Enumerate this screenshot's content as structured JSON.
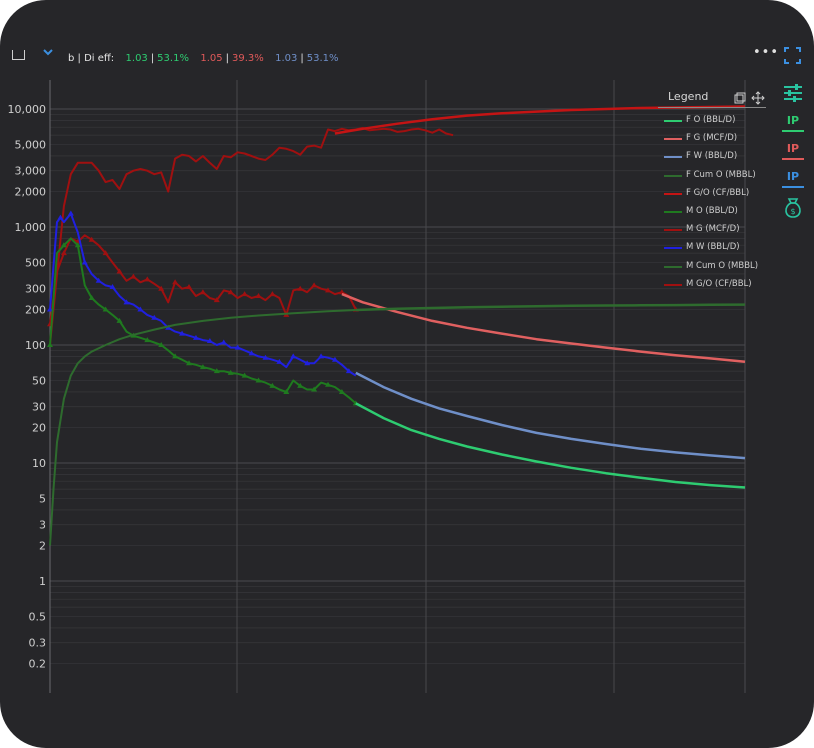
{
  "header": {
    "label": "b | Di eff:",
    "eff": [
      {
        "b": "1.03",
        "d": "53.1%",
        "color": "#2ecc71"
      },
      {
        "b": "1.05",
        "d": "39.3%",
        "color": "#e05a5a"
      },
      {
        "b": "1.03",
        "d": "53.1%",
        "color": "#6f8fc8"
      }
    ]
  },
  "side_buttons": [
    {
      "icon": "sliders-icon",
      "color": "#29c3a0"
    },
    {
      "label": "IP",
      "color": "#2ecc71"
    },
    {
      "label": "IP",
      "color": "#e05a5a"
    },
    {
      "label": "IP",
      "color": "#3b8fe0"
    },
    {
      "icon": "money-bag-icon",
      "color": "#29c3a0"
    }
  ],
  "legend": {
    "title": "Legend",
    "items": [
      {
        "label": "F O (BBL/D)",
        "color": "#2ecc71"
      },
      {
        "label": "F G (MCF/D)",
        "color": "#e06060"
      },
      {
        "label": "F W (BBL/D)",
        "color": "#6f8fc8"
      },
      {
        "label": "F Cum O (MBBL)",
        "color": "#2e6b2e"
      },
      {
        "label": "F G/O (CF/BBL)",
        "color": "#c41414"
      },
      {
        "label": "M O (BBL/D)",
        "color": "#1f7a1f"
      },
      {
        "label": "M G (MCF/D)",
        "color": "#a01010"
      },
      {
        "label": "M W (BBL/D)",
        "color": "#2020e0"
      },
      {
        "label": "M Cum O (MBBL)",
        "color": "#2e6b2e"
      },
      {
        "label": "M G/O (CF/BBL)",
        "color": "#a01010"
      }
    ]
  },
  "chart_data": {
    "type": "line",
    "yscale": "log",
    "ylim": [
      0.15,
      20000
    ],
    "xlim": [
      0,
      100
    ],
    "grid": true,
    "yticks": [
      "10,000",
      "5,000",
      "3,000",
      "2,000",
      "1,000",
      "500",
      "300",
      "200",
      "100",
      "50",
      "30",
      "20",
      "10",
      "5",
      "3",
      "2",
      "1",
      "0.5",
      "0.3",
      "0.2"
    ],
    "ytick_values": [
      10000,
      5000,
      3000,
      2000,
      1000,
      500,
      300,
      200,
      100,
      50,
      30,
      20,
      10,
      5,
      3,
      2,
      1,
      0.5,
      0.3,
      0.2
    ],
    "series": [
      {
        "name": "M G/O (CF/BBL)",
        "color": "#a01010",
        "x": [
          0,
          1,
          2,
          3,
          4,
          5,
          6,
          7,
          8,
          9,
          10,
          11,
          12,
          13,
          14,
          15,
          16,
          17,
          18,
          19,
          20,
          21,
          22,
          23,
          24,
          25,
          26,
          27,
          28,
          29,
          30,
          31,
          32,
          33,
          34,
          35,
          36,
          37,
          38,
          39,
          40,
          41,
          42,
          43,
          44,
          45,
          46,
          47,
          48,
          49,
          50,
          51,
          52,
          53,
          54,
          55,
          56,
          57,
          58
        ],
        "values": [
          100,
          400,
          1500,
          2800,
          3500,
          3500,
          3500,
          3000,
          2400,
          2500,
          2100,
          2800,
          3000,
          3100,
          3000,
          2800,
          2900,
          2000,
          3800,
          4100,
          4000,
          3600,
          4000,
          3500,
          3100,
          4000,
          3900,
          4300,
          4200,
          4000,
          3800,
          3700,
          4100,
          4700,
          4600,
          4400,
          4100,
          4800,
          4900,
          4700,
          6700,
          6500,
          6800,
          6600,
          6700,
          6900,
          6600,
          6700,
          6800,
          6700,
          6400,
          6500,
          6700,
          6800,
          6600,
          6300,
          6700,
          6200,
          6000
        ]
      },
      {
        "name": "F G/O (CF/BBL)",
        "color": "#c41414",
        "x": [
          41,
          45,
          50,
          55,
          60,
          65,
          70,
          75,
          80,
          85,
          90,
          95,
          100
        ],
        "values": [
          6200,
          6800,
          7500,
          8200,
          8800,
          9200,
          9500,
          9800,
          10000,
          10200,
          10300,
          10400,
          10500
        ]
      },
      {
        "name": "M G (MCF/D)",
        "color": "#a01010",
        "x": [
          0,
          1,
          2,
          3,
          4,
          5,
          6,
          7,
          8,
          9,
          10,
          11,
          12,
          13,
          14,
          15,
          16,
          17,
          18,
          19,
          20,
          21,
          22,
          23,
          24,
          25,
          26,
          27,
          28,
          29,
          30,
          31,
          32,
          33,
          34,
          35,
          36,
          37,
          38,
          39,
          40,
          41,
          42,
          43,
          44
        ],
        "values": [
          150,
          420,
          600,
          800,
          750,
          850,
          780,
          700,
          600,
          500,
          420,
          350,
          380,
          340,
          360,
          330,
          300,
          230,
          340,
          300,
          310,
          260,
          280,
          250,
          240,
          290,
          280,
          250,
          270,
          250,
          260,
          240,
          270,
          250,
          180,
          290,
          300,
          280,
          320,
          300,
          290,
          270,
          280,
          260,
          200
        ]
      },
      {
        "name": "F G (MCF/D)",
        "color": "#e06060",
        "x": [
          42,
          45,
          50,
          55,
          60,
          65,
          70,
          75,
          80,
          85,
          90,
          95,
          100
        ],
        "values": [
          270,
          230,
          190,
          160,
          140,
          125,
          112,
          103,
          95,
          88,
          82,
          77,
          72
        ]
      },
      {
        "name": "M W (BBL/D)",
        "color": "#2020e0",
        "x": [
          0,
          1,
          1.5,
          2,
          3,
          4,
          5,
          6,
          7,
          8,
          9,
          10,
          11,
          12,
          13,
          14,
          15,
          16,
          17,
          18,
          19,
          20,
          21,
          22,
          23,
          24,
          25,
          26,
          27,
          28,
          29,
          30,
          31,
          32,
          33,
          34,
          35,
          36,
          37,
          38,
          39,
          40,
          41,
          42,
          43,
          44
        ],
        "values": [
          200,
          1100,
          1200,
          1100,
          1300,
          900,
          500,
          400,
          350,
          320,
          310,
          260,
          230,
          220,
          200,
          180,
          170,
          160,
          140,
          130,
          125,
          120,
          115,
          110,
          108,
          100,
          105,
          95,
          95,
          90,
          85,
          80,
          78,
          75,
          72,
          65,
          80,
          75,
          70,
          70,
          80,
          78,
          75,
          68,
          60,
          55
        ]
      },
      {
        "name": "F W (BBL/D)",
        "color": "#6f8fc8",
        "x": [
          44,
          48,
          52,
          56,
          60,
          65,
          70,
          75,
          80,
          85,
          90,
          95,
          100
        ],
        "values": [
          58,
          44,
          35,
          29,
          25,
          21,
          18,
          16,
          14.5,
          13.2,
          12.3,
          11.6,
          11
        ]
      },
      {
        "name": "M O (BBL/D)",
        "color": "#1f7a1f",
        "x": [
          0,
          1,
          2,
          3,
          4,
          5,
          6,
          7,
          8,
          9,
          10,
          11,
          12,
          13,
          14,
          15,
          16,
          17,
          18,
          19,
          20,
          21,
          22,
          23,
          24,
          25,
          26,
          27,
          28,
          29,
          30,
          31,
          32,
          33,
          34,
          35,
          36,
          37,
          38,
          39,
          40,
          41,
          42,
          43,
          44
        ],
        "values": [
          100,
          600,
          700,
          800,
          700,
          320,
          250,
          220,
          200,
          180,
          160,
          130,
          120,
          115,
          110,
          105,
          100,
          90,
          80,
          75,
          70,
          68,
          65,
          63,
          60,
          60,
          58,
          57,
          55,
          52,
          50,
          48,
          45,
          42,
          40,
          50,
          45,
          42,
          42,
          48,
          46,
          44,
          40,
          36,
          32
        ]
      },
      {
        "name": "F O (BBL/D)",
        "color": "#2ecc71",
        "x": [
          44,
          48,
          52,
          56,
          60,
          65,
          70,
          75,
          80,
          85,
          90,
          95,
          100
        ],
        "values": [
          32,
          24,
          19,
          16,
          13.8,
          11.8,
          10.3,
          9.1,
          8.2,
          7.5,
          6.9,
          6.5,
          6.2
        ]
      },
      {
        "name": "M Cum O (MBBL)",
        "color": "#2e6b2e",
        "x": [
          0,
          0.5,
          1,
          2,
          3,
          4,
          5,
          6,
          8,
          10,
          12,
          15,
          18,
          22,
          26,
          30,
          35,
          40,
          44
        ],
        "values": [
          2,
          6,
          15,
          35,
          55,
          70,
          80,
          88,
          100,
          112,
          122,
          135,
          148,
          160,
          170,
          178,
          186,
          193,
          198
        ]
      },
      {
        "name": "F Cum O (MBBL)",
        "color": "#2e6b2e",
        "x": [
          44,
          50,
          55,
          60,
          65,
          70,
          75,
          80,
          85,
          90,
          95,
          100
        ],
        "values": [
          198,
          203,
          206,
          209,
          211,
          213,
          215,
          216,
          217,
          218,
          219,
          220
        ]
      }
    ]
  }
}
